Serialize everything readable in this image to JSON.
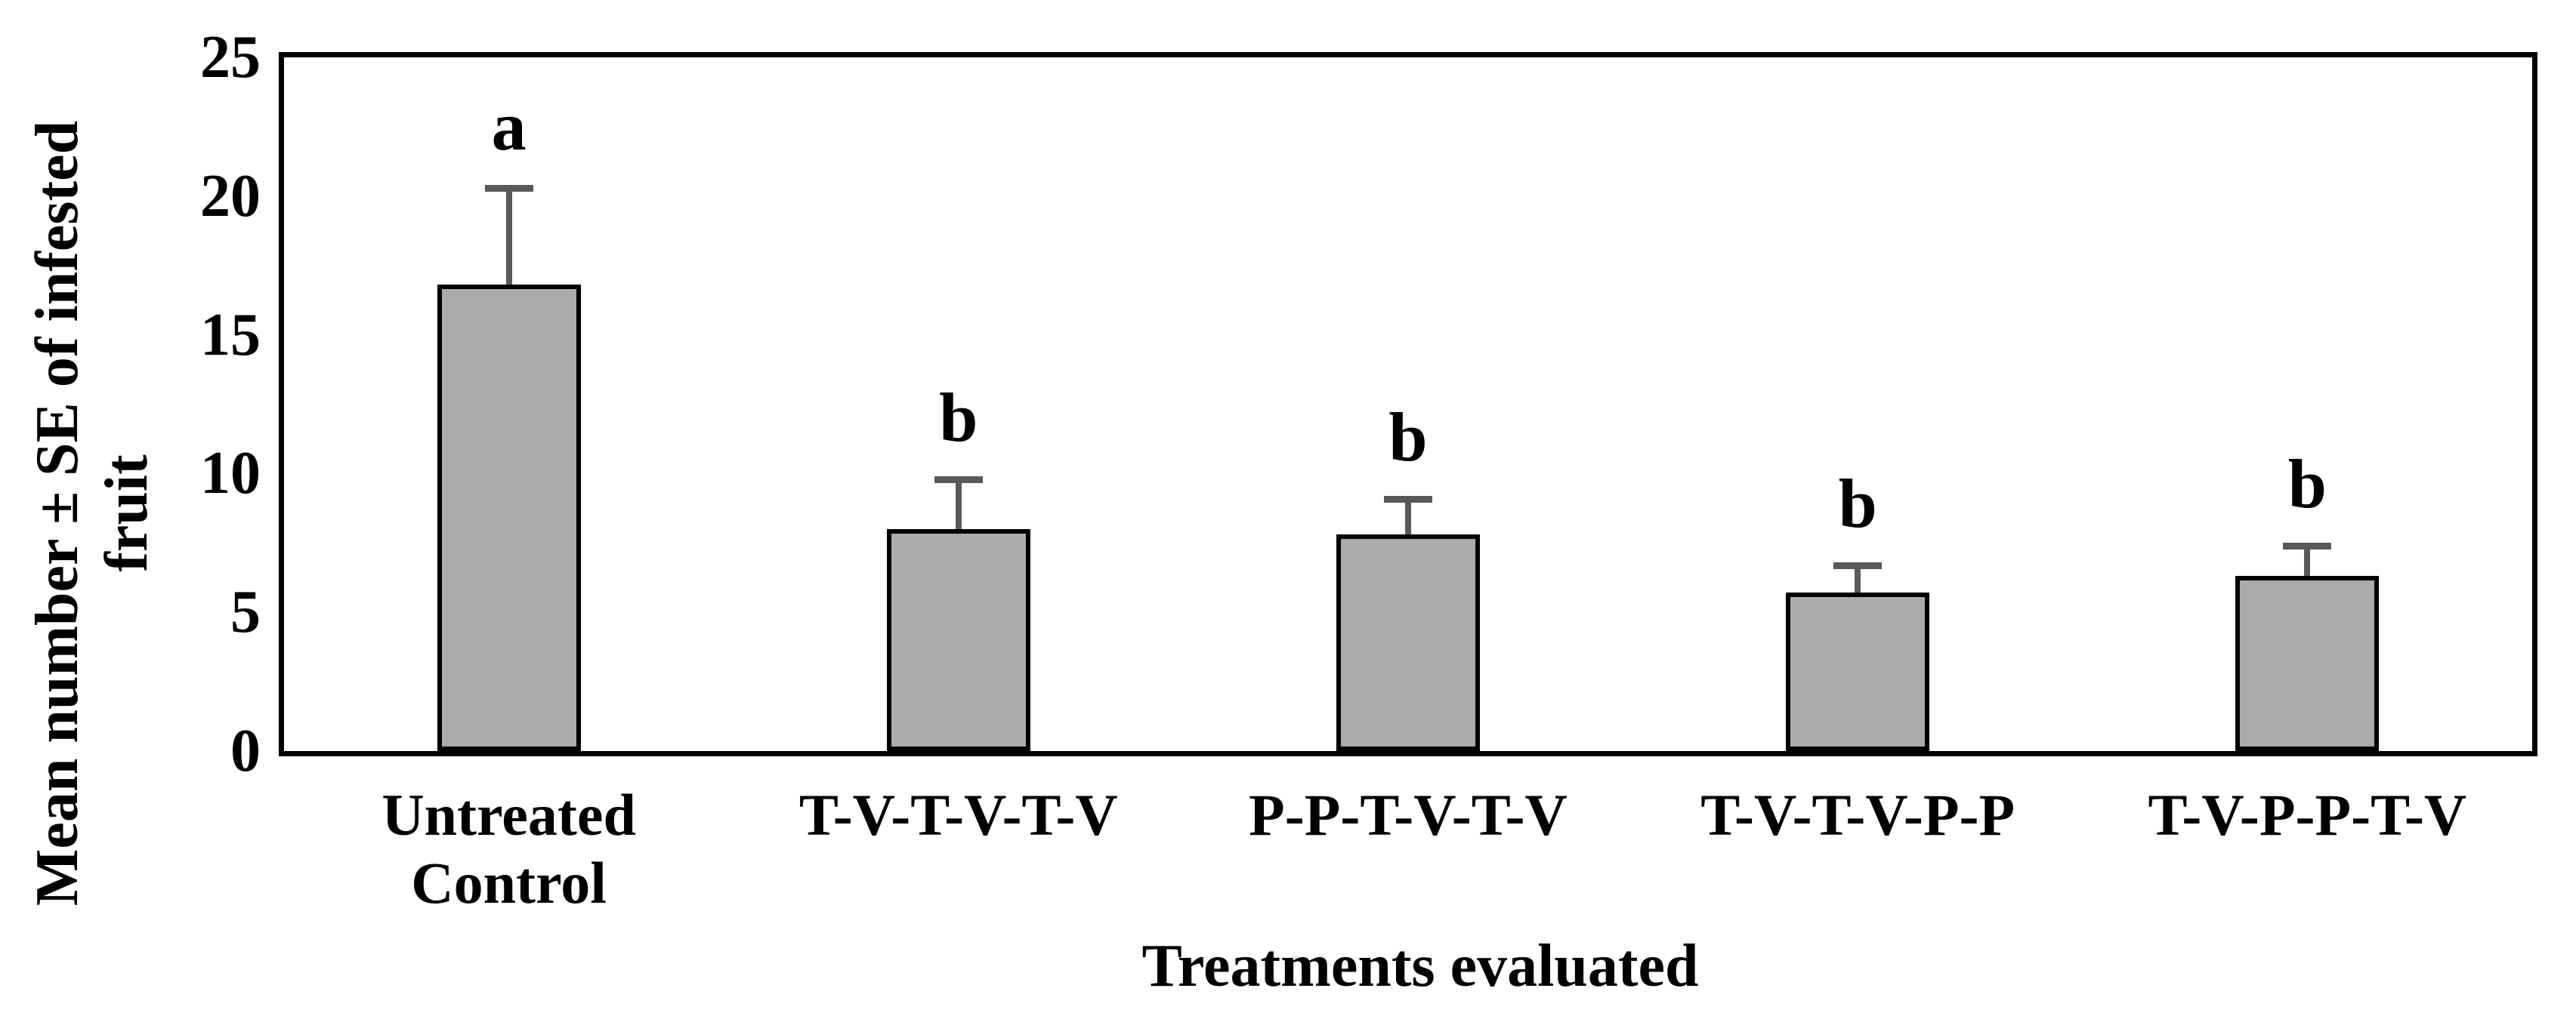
{
  "chart_data": {
    "type": "bar",
    "title": "",
    "xlabel": "Treatments evaluated",
    "ylabel": "Mean number ± SE of infested\nfruit",
    "categories": [
      "Untreated\nControl",
      "T-V-T-V-T-V",
      "P-P-T-V-T-V",
      "T-V-T-V-P-P",
      "T-V-P-P-T-V"
    ],
    "values": [
      16.8,
      8.0,
      7.8,
      5.7,
      6.3
    ],
    "se_upper": [
      3.6,
      1.9,
      1.4,
      1.1,
      1.2
    ],
    "sig_letters": [
      "a",
      "b",
      "b",
      "b",
      "b"
    ],
    "ylim": [
      0,
      25
    ],
    "yticks": [
      0,
      5,
      10,
      15,
      20,
      25
    ],
    "grid": "off",
    "legend": "none",
    "bar_fill_color": "#ABABAB",
    "bar_border_color": "#000000",
    "error_bar_color": "#595959"
  }
}
